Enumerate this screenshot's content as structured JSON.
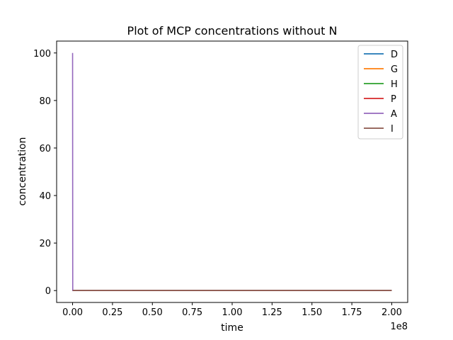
{
  "chart_data": {
    "type": "line",
    "title": "Plot of MCP concentrations without N",
    "xlabel": "time",
    "ylabel": "concentration",
    "x_offset_label": "1e8",
    "xlim": [
      -0.1,
      2.1
    ],
    "ylim": [
      -5,
      105
    ],
    "x_ticks": [
      0.0,
      0.25,
      0.5,
      0.75,
      1.0,
      1.25,
      1.5,
      1.75,
      2.0
    ],
    "x_tick_labels": [
      "0.00",
      "0.25",
      "0.50",
      "0.75",
      "1.00",
      "1.25",
      "1.50",
      "1.75",
      "2.00"
    ],
    "y_ticks": [
      0,
      20,
      40,
      60,
      80,
      100
    ],
    "y_tick_labels": [
      "0",
      "20",
      "40",
      "60",
      "80",
      "100"
    ],
    "grid": false,
    "legend_position": "top-right",
    "series": [
      {
        "name": "D",
        "color": "#1f77b4",
        "x": [
          0.0,
          0.001,
          2.0
        ],
        "y": [
          0,
          0,
          0
        ]
      },
      {
        "name": "G",
        "color": "#ff7f0e",
        "x": [
          0.0,
          0.001,
          2.0
        ],
        "y": [
          0,
          0,
          0
        ]
      },
      {
        "name": "H",
        "color": "#2ca02c",
        "x": [
          0.0,
          0.001,
          2.0
        ],
        "y": [
          0,
          0,
          0
        ]
      },
      {
        "name": "P",
        "color": "#d62728",
        "x": [
          0.0,
          0.001,
          2.0
        ],
        "y": [
          0,
          0,
          0
        ]
      },
      {
        "name": "A",
        "color": "#9467bd",
        "x": [
          0.0,
          0.001,
          2.0
        ],
        "y": [
          100,
          0,
          0
        ]
      },
      {
        "name": "I",
        "color": "#8c564b",
        "x": [
          0.0,
          0.001,
          2.0
        ],
        "y": [
          0,
          0,
          0
        ]
      }
    ]
  }
}
